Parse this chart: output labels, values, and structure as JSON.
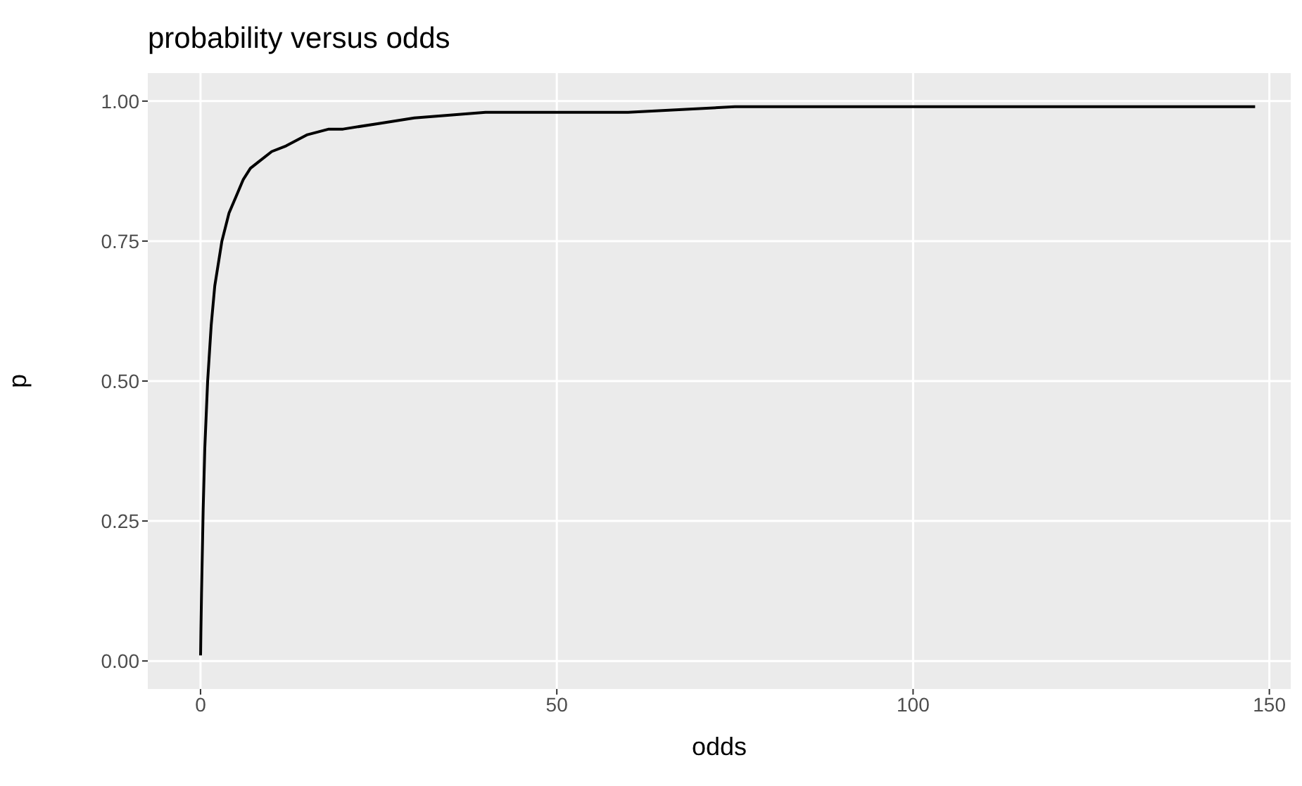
{
  "chart_data": {
    "type": "line",
    "title": "probability versus odds",
    "xlabel": "odds",
    "ylabel": "p",
    "x": [
      0.0067,
      0.02,
      0.05,
      0.14,
      0.37,
      0.6,
      1,
      1.5,
      2,
      3,
      4,
      5,
      6,
      7,
      8,
      10,
      12,
      15,
      18,
      20,
      25,
      30,
      40,
      50,
      60,
      75,
      100,
      125,
      148
    ],
    "series": [
      {
        "color": "#000000",
        "values": [
          0.01,
          0.02,
          0.05,
          0.12,
          0.27,
          0.38,
          0.5,
          0.6,
          0.67,
          0.75,
          0.8,
          0.83,
          0.86,
          0.88,
          0.89,
          0.91,
          0.92,
          0.94,
          0.95,
          0.95,
          0.96,
          0.97,
          0.98,
          0.98,
          0.98,
          0.99,
          0.99,
          0.99,
          0.99
        ]
      }
    ],
    "xlim": [
      -7.4,
      153
    ],
    "ylim": [
      -0.05,
      1.05
    ],
    "xticks": [
      0,
      50,
      100,
      150
    ],
    "yticks": [
      {
        "value": 0,
        "label": "0.00"
      },
      {
        "value": 0.25,
        "label": "0.25"
      },
      {
        "value": 0.5,
        "label": "0.50"
      },
      {
        "value": 0.75,
        "label": "0.75"
      },
      {
        "value": 1,
        "label": "1.00"
      }
    ],
    "grid": true,
    "marker": "none",
    "line_style": "solid"
  }
}
